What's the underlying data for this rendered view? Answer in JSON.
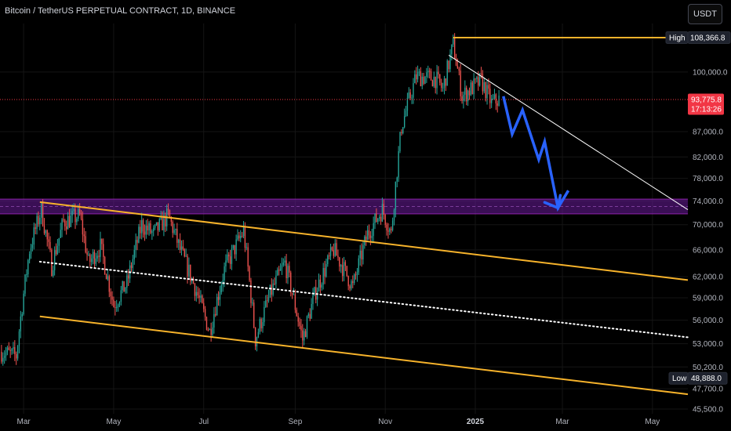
{
  "header": {
    "title": "Bitcoin / TetherUS PERPETUAL CONTRACT, 1D, BINANCE",
    "currency_button": "USDT"
  },
  "price_tags": {
    "high_label": "High",
    "high_value": "108,366.8",
    "current_value": "93,775.8",
    "countdown": "17:13:26",
    "low_label": "Low",
    "low_value": "48,888.0"
  },
  "colors": {
    "background": "#000000",
    "up": "#26a69a",
    "down": "#ef5350",
    "channel": "#f7b32b",
    "projection": "#2962ff",
    "zone": "#6a1b9a",
    "current_price": "#f23645",
    "axis_tag": "#1e222d"
  },
  "chart_data": {
    "type": "candlestick",
    "title": "Bitcoin / TetherUS PERPETUAL CONTRACT, 1D, BINANCE",
    "x_tick_labels": [
      "Mar",
      "May",
      "Jul",
      "Sep",
      "Nov",
      "2025",
      "Mar",
      "May"
    ],
    "y_tick_labels": [
      "100,000.0",
      "87,000.0",
      "82,000.0",
      "78,000.0",
      "74,000.0",
      "70,000.0",
      "66,000.0",
      "62,000.0",
      "59,000.0",
      "56,000.0",
      "53,000.0",
      "50,200.0",
      "47,700.0",
      "45,500.0"
    ],
    "y_ticks": [
      100000,
      87000,
      82000,
      78000,
      74000,
      70000,
      66000,
      62000,
      59000,
      56000,
      53000,
      50200,
      47700,
      45500
    ],
    "y_scale": "log",
    "y_range": [
      45000,
      112000
    ],
    "x_range": [
      "2024-02-14",
      "2025-05-25"
    ],
    "high": 108366.8,
    "low": 48888.0,
    "last_price": 93775.8,
    "price_path": [
      [
        "2024-02-15",
        52000
      ],
      [
        "2024-02-25",
        51500
      ],
      [
        "2024-03-05",
        66000
      ],
      [
        "2024-03-13",
        72500
      ],
      [
        "2024-03-20",
        63500
      ],
      [
        "2024-03-28",
        70500
      ],
      [
        "2024-04-08",
        71500
      ],
      [
        "2024-04-14",
        64000
      ],
      [
        "2024-04-22",
        66500
      ],
      [
        "2024-05-01",
        58000
      ],
      [
        "2024-05-10",
        61000
      ],
      [
        "2024-05-20",
        70000
      ],
      [
        "2024-05-28",
        68500
      ],
      [
        "2024-06-07",
        71500
      ],
      [
        "2024-06-15",
        66000
      ],
      [
        "2024-06-25",
        60500
      ],
      [
        "2024-07-05",
        54500
      ],
      [
        "2024-07-15",
        63000
      ],
      [
        "2024-07-28",
        69000
      ],
      [
        "2024-08-05",
        53500
      ],
      [
        "2024-08-15",
        59500
      ],
      [
        "2024-08-25",
        64000
      ],
      [
        "2024-09-06",
        53500
      ],
      [
        "2024-09-15",
        60000
      ],
      [
        "2024-09-27",
        66000
      ],
      [
        "2024-10-10",
        60500
      ],
      [
        "2024-10-20",
        68500
      ],
      [
        "2024-10-30",
        72500
      ],
      [
        "2024-11-05",
        68500
      ],
      [
        "2024-11-12",
        88000
      ],
      [
        "2024-11-22",
        99000
      ],
      [
        "2024-12-05",
        98500
      ],
      [
        "2024-12-10",
        96000
      ],
      [
        "2024-12-17",
        106500
      ],
      [
        "2024-12-23",
        94500
      ],
      [
        "2025-01-05",
        98000
      ],
      [
        "2025-01-12",
        93000
      ],
      [
        "2025-01-17",
        93775.8
      ]
    ],
    "overlays": {
      "purple_zone": [
        71800,
        74300
      ],
      "upper_channel_line": [
        [
          "2024-03-12",
          73800
        ],
        [
          "2025-05-25",
          61500
        ]
      ],
      "channel_midline": [
        [
          "2024-03-12",
          64200
        ],
        [
          "2025-05-25",
          53800
        ]
      ],
      "lower_channel_line": [
        [
          "2024-03-12",
          56500
        ],
        [
          "2025-05-25",
          47100
        ]
      ],
      "resistance_trendline": [
        [
          "2024-12-14",
          104000
        ],
        [
          "2025-05-25",
          72500
        ]
      ],
      "high_line": [
        [
          "2024-12-17",
          108366.8
        ],
        [
          "2025-05-25",
          108366.8
        ]
      ],
      "projection_path": [
        [
          "2025-01-20",
          94500
        ],
        [
          "2025-01-26",
          86500
        ],
        [
          "2025-02-02",
          91500
        ],
        [
          "2025-02-13",
          81500
        ],
        [
          "2025-02-17",
          85000
        ],
        [
          "2025-02-26",
          72800
        ],
        [
          "2025-03-05",
          75800
        ]
      ]
    }
  }
}
